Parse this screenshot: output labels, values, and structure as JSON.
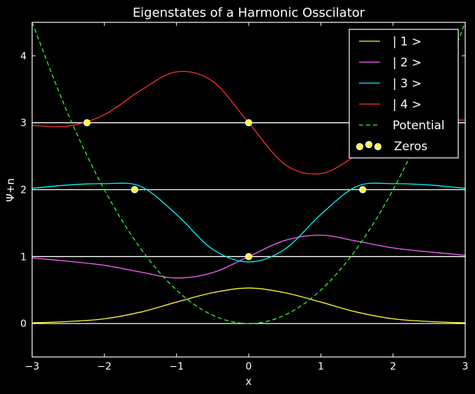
{
  "chart_data": {
    "type": "line",
    "title": "Eigenstates of a Harmonic Osscilator",
    "xlabel": "x",
    "ylabel": "Ψ+n",
    "xlim": [
      -3,
      3
    ],
    "ylim": [
      -0.5,
      4.5
    ],
    "xticks": [
      -3,
      -2,
      -1,
      0,
      1,
      2,
      3
    ],
    "xtick_labels": [
      "−3",
      "−2",
      "−1",
      "0",
      "1",
      "2",
      "3"
    ],
    "yticks": [
      0,
      1,
      2,
      3,
      4
    ],
    "ytick_labels": [
      "0",
      "1",
      "2",
      "3",
      "4"
    ],
    "background": "#000000",
    "foreground": "#ffffff",
    "grid": false,
    "legend_position": "top-right",
    "x": [
      -3.0,
      -2.5,
      -2.0,
      -1.5,
      -1.0,
      -0.5,
      0.0,
      0.5,
      1.0,
      1.5,
      2.0,
      2.5,
      3.0
    ],
    "series": [
      {
        "name": "| 1 >",
        "color": "#ffff33",
        "style": "solid",
        "values": [
          0.01,
          0.03,
          0.07,
          0.17,
          0.32,
          0.46,
          0.53,
          0.46,
          0.32,
          0.17,
          0.07,
          0.03,
          0.01
        ]
      },
      {
        "name": "| 2 >",
        "color": "#ff66ff",
        "style": "solid",
        "values": [
          0.98,
          0.93,
          0.87,
          0.77,
          0.68,
          0.76,
          1.0,
          1.24,
          1.32,
          1.23,
          1.13,
          1.07,
          1.02
        ]
      },
      {
        "name": "| 3 >",
        "color": "#00ffff",
        "style": "solid",
        "values": [
          2.02,
          2.07,
          2.09,
          2.05,
          1.63,
          1.11,
          0.92,
          1.11,
          1.63,
          2.05,
          2.09,
          2.07,
          2.02
        ]
      },
      {
        "name": "| 4 >",
        "color": "#ff3333",
        "style": "solid",
        "values": [
          2.96,
          2.95,
          3.12,
          3.48,
          3.76,
          3.62,
          3.0,
          2.38,
          2.24,
          2.52,
          2.88,
          3.03,
          3.04
        ]
      },
      {
        "name": "Potential",
        "color": "#33ff33",
        "style": "dashed",
        "values": [
          4.5,
          3.125,
          2.0,
          1.125,
          0.5,
          0.125,
          0.0,
          0.125,
          0.5,
          1.125,
          2.0,
          3.125,
          4.5
        ]
      }
    ],
    "baselines": [
      0,
      1,
      2,
      3
    ],
    "zeros": {
      "name": "Zeros",
      "color": "#ffff33",
      "edge": "#ffffff",
      "points": [
        {
          "x": 0.0,
          "y": 1.0
        },
        {
          "x": -1.58,
          "y": 2.0
        },
        {
          "x": 1.58,
          "y": 2.0
        },
        {
          "x": -2.24,
          "y": 3.0
        },
        {
          "x": 0.0,
          "y": 3.0
        }
      ]
    }
  }
}
